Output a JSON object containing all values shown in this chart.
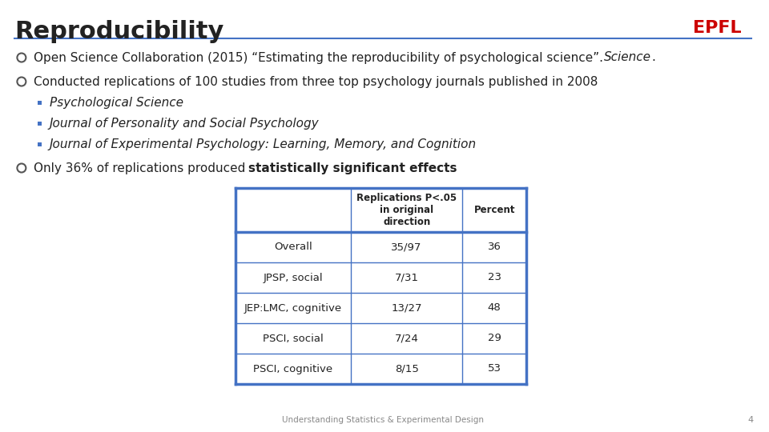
{
  "title": "Reproducibility",
  "title_fontsize": 22,
  "title_color": "#222222",
  "background_color": "#ffffff",
  "epfl_color": "#cc0000",
  "epfl_text": "EPFL",
  "line_color": "#4472c4",
  "bullet_color": "#222222",
  "bullet_circle_color": "#555555",
  "sub_bullet_color": "#4472c4",
  "bullet1": "Open Science Collaboration (2015) “Estimating the reproducibility of psychological science”. ",
  "bullet1_italic": "Science",
  "bullet1_end": ".",
  "bullet2": "Conducted replications of 100 studies from three top psychology journals published in 2008",
  "sub_bullets": [
    "Psychological Science",
    "Journal of Personality and Social Psychology",
    "Journal of Experimental Psychology: Learning, Memory, and Cognition"
  ],
  "bullet3_prefix": "Only 36% of replications produced ",
  "bullet3_bold": "statistically significant effects",
  "table_header": [
    "",
    "Replications P<.05\nin original\ndirection",
    "Percent"
  ],
  "table_rows": [
    [
      "Overall",
      "35/97",
      "36"
    ],
    [
      "JPSP, social",
      "7/31",
      "23"
    ],
    [
      "JEP:LMC, cognitive",
      "13/27",
      "48"
    ],
    [
      "PSCI, social",
      "7/24",
      "29"
    ],
    [
      "PSCI, cognitive",
      "8/15",
      "53"
    ]
  ],
  "footer": "Understanding Statistics & Experimental Design",
  "page_number": "4",
  "table_border_color": "#4472c4",
  "table_text_color": "#222222"
}
